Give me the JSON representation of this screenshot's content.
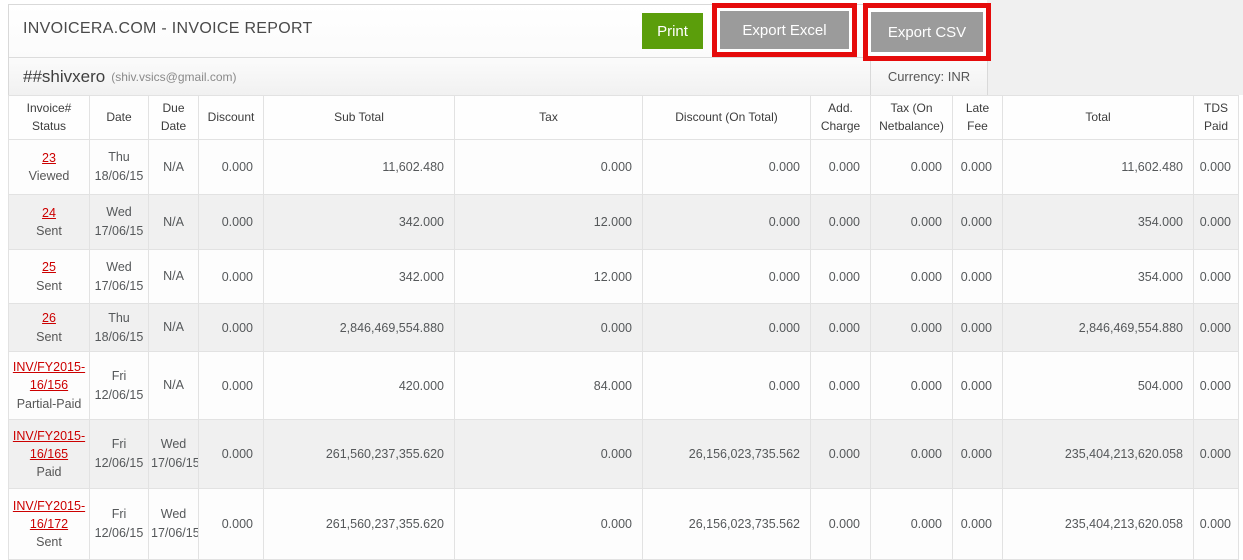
{
  "page": {
    "title": "INVOICERA.COM - INVOICE REPORT"
  },
  "toolbar": {
    "print_label": "Print",
    "export_excel_label": "Export Excel",
    "export_csv_label": "Export CSV"
  },
  "account": {
    "name": "##shivxero",
    "email": "(shiv.vsics@gmail.com)",
    "currency_label": "Currency: INR"
  },
  "colors": {
    "print_green": "#5b9e0b",
    "export_gray": "#9b9b9b",
    "highlight_red": "#e50b0b",
    "invoice_link_red": "#cc0000"
  },
  "table": {
    "columns": [
      "Invoice#\nStatus",
      "Date",
      "Due\nDate",
      "Discount",
      "Sub Total",
      "Tax",
      "Discount (On Total)",
      "Add.\nCharge",
      "Tax (On\nNetbalance)",
      "Late\nFee",
      "Total",
      "TDS\nPaid"
    ],
    "rows": [
      {
        "invoice_no": "23",
        "status": "Viewed",
        "date": "Thu\n18/06/15",
        "due_date": "N/A",
        "discount": "0.000",
        "sub_total": "11,602.480",
        "tax": "0.000",
        "discount_on_total": "0.000",
        "add_charge": "0.000",
        "tax_on_netbalance": "0.000",
        "late_fee": "0.000",
        "total": "11,602.480",
        "tds_paid": "0.000"
      },
      {
        "invoice_no": "24",
        "status": "Sent",
        "date": "Wed\n17/06/15",
        "due_date": "N/A",
        "discount": "0.000",
        "sub_total": "342.000",
        "tax": "12.000",
        "discount_on_total": "0.000",
        "add_charge": "0.000",
        "tax_on_netbalance": "0.000",
        "late_fee": "0.000",
        "total": "354.000",
        "tds_paid": "0.000"
      },
      {
        "invoice_no": "25",
        "status": "Sent",
        "date": "Wed\n17/06/15",
        "due_date": "N/A",
        "discount": "0.000",
        "sub_total": "342.000",
        "tax": "12.000",
        "discount_on_total": "0.000",
        "add_charge": "0.000",
        "tax_on_netbalance": "0.000",
        "late_fee": "0.000",
        "total": "354.000",
        "tds_paid": "0.000"
      },
      {
        "invoice_no": "26",
        "status": "Sent",
        "date": "Thu\n18/06/15",
        "due_date": "N/A",
        "discount": "0.000",
        "sub_total": "2,846,469,554.880",
        "tax": "0.000",
        "discount_on_total": "0.000",
        "add_charge": "0.000",
        "tax_on_netbalance": "0.000",
        "late_fee": "0.000",
        "total": "2,846,469,554.880",
        "tds_paid": "0.000"
      },
      {
        "invoice_no": "INV/FY2015-16/156",
        "status": "Partial-Paid",
        "date": "Fri\n12/06/15",
        "due_date": "N/A",
        "discount": "0.000",
        "sub_total": "420.000",
        "tax": "84.000",
        "discount_on_total": "0.000",
        "add_charge": "0.000",
        "tax_on_netbalance": "0.000",
        "late_fee": "0.000",
        "total": "504.000",
        "tds_paid": "0.000"
      },
      {
        "invoice_no": "INV/FY2015-16/165",
        "status": "Paid",
        "date": "Fri\n12/06/15",
        "due_date": "Wed\n17/06/15",
        "discount": "0.000",
        "sub_total": "261,560,237,355.620",
        "tax": "0.000",
        "discount_on_total": "26,156,023,735.562",
        "add_charge": "0.000",
        "tax_on_netbalance": "0.000",
        "late_fee": "0.000",
        "total": "235,404,213,620.058",
        "tds_paid": "0.000"
      },
      {
        "invoice_no": "INV/FY2015-16/172",
        "status": "Sent",
        "date": "Fri\n12/06/15",
        "due_date": "Wed\n17/06/15",
        "discount": "0.000",
        "sub_total": "261,560,237,355.620",
        "tax": "0.000",
        "discount_on_total": "26,156,023,735.562",
        "add_charge": "0.000",
        "tax_on_netbalance": "0.000",
        "late_fee": "0.000",
        "total": "235,404,213,620.058",
        "tds_paid": "0.000"
      }
    ]
  }
}
